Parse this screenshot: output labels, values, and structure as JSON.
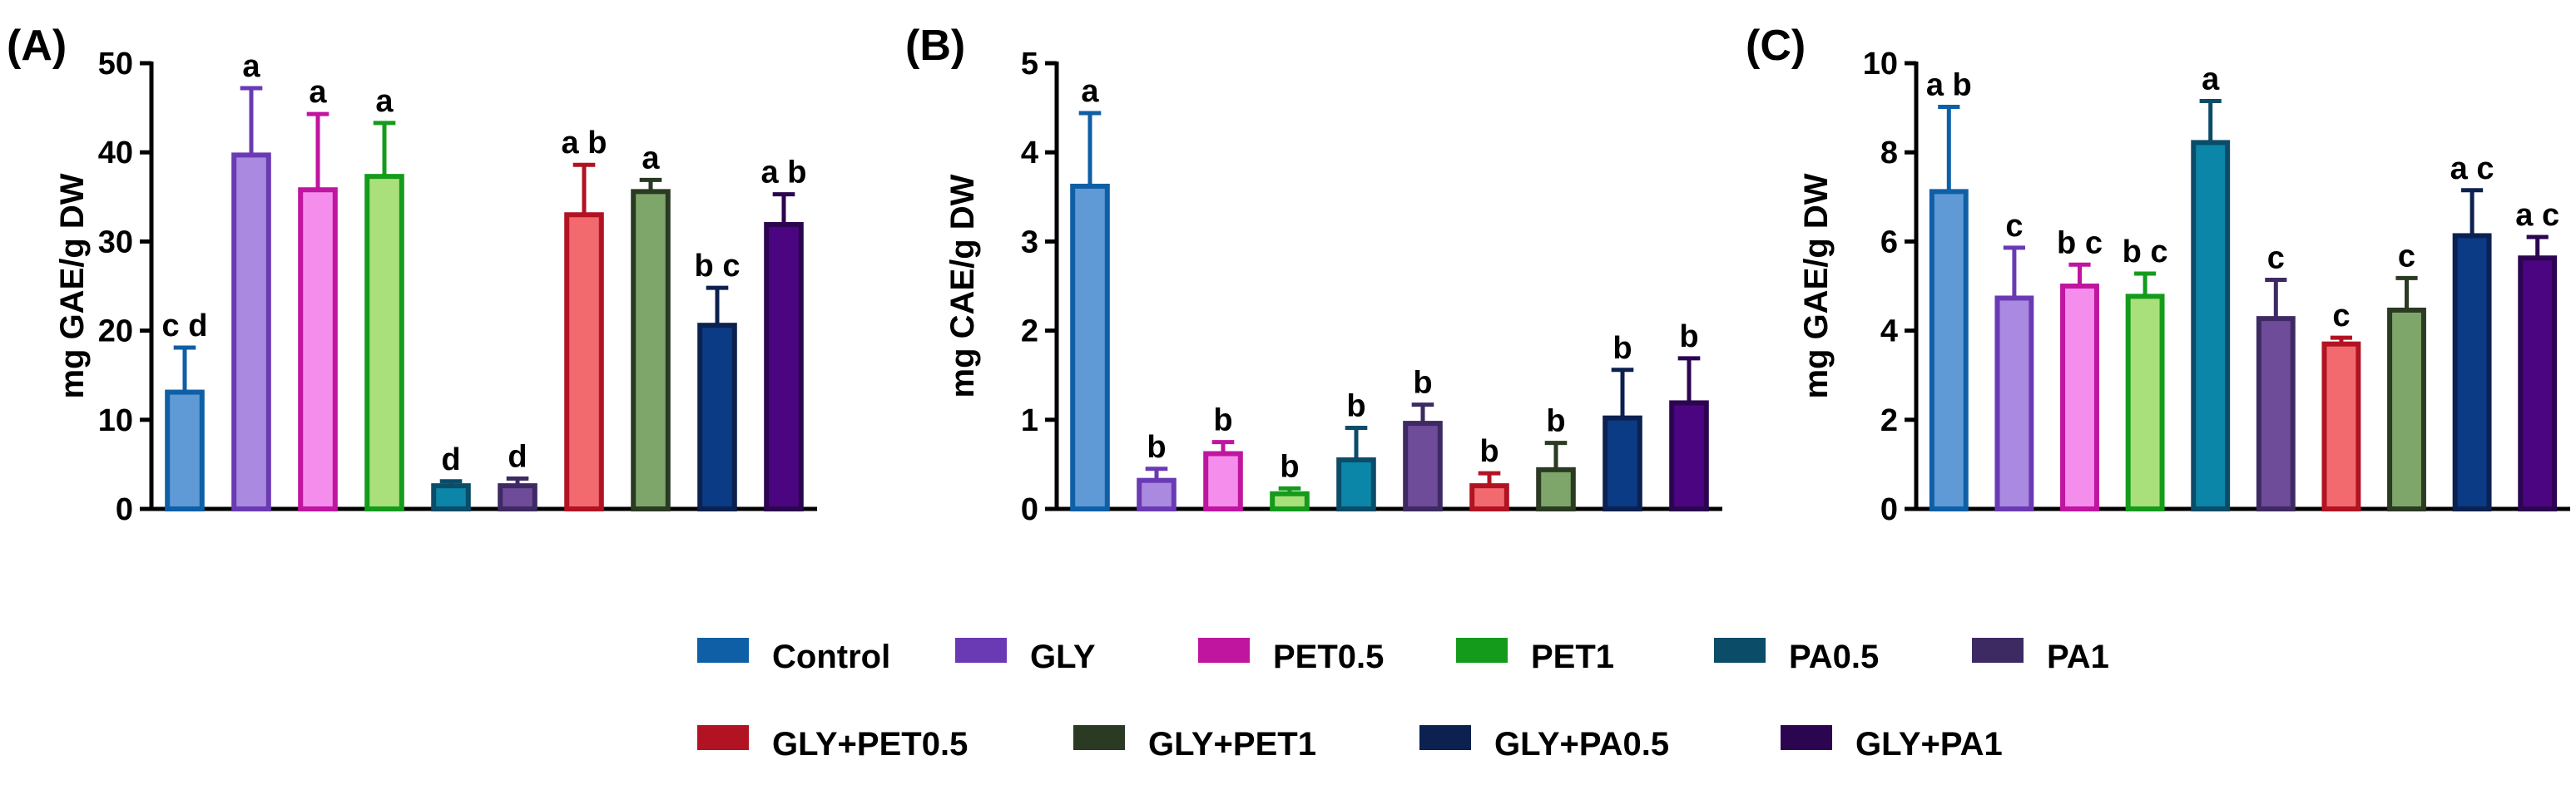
{
  "colors": {
    "Control": {
      "edge": "#0f5fa6",
      "fill": "#5f9ad6"
    },
    "GLY": {
      "edge": "#6a3ab4",
      "fill": "#a98ae0"
    },
    "PET0.5": {
      "edge": "#c0159f",
      "fill": "#f58ded"
    },
    "PET1": {
      "edge": "#159b1c",
      "fill": "#a9e07c"
    },
    "PA0.5": {
      "edge": "#0b4c68",
      "fill": "#0b86a8"
    },
    "PA1": {
      "edge": "#3e2a63",
      "fill": "#6e4c99"
    },
    "GLY+PET0.5": {
      "edge": "#b21323",
      "fill": "#f26a6e"
    },
    "GLY+PET1": {
      "edge": "#2a3a23",
      "fill": "#7ea66a"
    },
    "GLY+PA0.5": {
      "edge": "#0c2150",
      "fill": "#0a3b84"
    },
    "GLY+PA1": {
      "edge": "#2c0550",
      "fill": "#4b0581"
    }
  },
  "legend": {
    "entries": [
      {
        "name": "Control",
        "swatch": "#0f5fa6"
      },
      {
        "name": "GLY",
        "swatch": "#6a3ab4"
      },
      {
        "name": "PET0.5",
        "swatch": "#c0159f"
      },
      {
        "name": "PET1",
        "swatch": "#159b1c"
      },
      {
        "name": "PA0.5",
        "swatch": "#0b4c68"
      },
      {
        "name": "PA1",
        "swatch": "#3e2a63"
      },
      {
        "name": "GLY+PET0.5",
        "swatch": "#b21323"
      },
      {
        "name": "GLY+PET1",
        "swatch": "#2a3a23"
      },
      {
        "name": "GLY+PA0.5",
        "swatch": "#0c2150"
      },
      {
        "name": "GLY+PA1",
        "swatch": "#2c0550"
      }
    ]
  },
  "chart_data": [
    {
      "type": "bar",
      "panel": "(A)",
      "ylabel": "mg GAE/g DW",
      "ylim": [
        0,
        50
      ],
      "yticks": [
        0,
        10,
        20,
        30,
        40,
        50
      ],
      "categories": [
        "Control",
        "GLY",
        "PET0.5",
        "PET1",
        "PA0.5",
        "PA1",
        "GLY+PET0.5",
        "GLY+PET1",
        "GLY+PA0.5",
        "GLY+PA1"
      ],
      "values": [
        13.1,
        39.7,
        35.8,
        37.3,
        2.6,
        2.6,
        33.0,
        35.6,
        20.6,
        31.9
      ],
      "errors": [
        5.0,
        7.5,
        8.5,
        6.0,
        0.5,
        0.8,
        5.6,
        1.3,
        4.2,
        3.4
      ],
      "labels": [
        "c d",
        "a",
        "a",
        "a",
        "d",
        "d",
        "a b",
        "a",
        "b c",
        "a b"
      ]
    },
    {
      "type": "bar",
      "panel": "(B)",
      "ylabel": "mg CAE/g DW",
      "ylim": [
        0,
        5
      ],
      "yticks": [
        0,
        1,
        2,
        3,
        4,
        5
      ],
      "categories": [
        "Control",
        "GLY",
        "PET0.5",
        "PET1",
        "PA0.5",
        "PA1",
        "GLY+PET0.5",
        "GLY+PET1",
        "GLY+PA0.5",
        "GLY+PA1"
      ],
      "values": [
        3.62,
        0.32,
        0.62,
        0.17,
        0.55,
        0.96,
        0.26,
        0.44,
        1.02,
        1.19
      ],
      "errors": [
        0.82,
        0.13,
        0.13,
        0.06,
        0.36,
        0.21,
        0.14,
        0.3,
        0.54,
        0.5
      ],
      "labels": [
        "a",
        "b",
        "b",
        "b",
        "b",
        "b",
        "b",
        "b",
        "b",
        "b"
      ]
    },
    {
      "type": "bar",
      "panel": "(C)",
      "ylabel": "mg GAE/g DW",
      "ylim": [
        0,
        10
      ],
      "yticks": [
        0,
        2,
        4,
        6,
        8,
        10
      ],
      "categories": [
        "Control",
        "GLY",
        "PET0.5",
        "PET1",
        "PA0.5",
        "PA1",
        "GLY+PET0.5",
        "GLY+PET1",
        "GLY+PA0.5",
        "GLY+PA1"
      ],
      "values": [
        7.12,
        4.73,
        5.0,
        4.77,
        8.22,
        4.27,
        3.7,
        4.46,
        6.13,
        5.63
      ],
      "errors": [
        1.9,
        1.13,
        0.48,
        0.51,
        0.93,
        0.87,
        0.14,
        0.72,
        1.02,
        0.47
      ],
      "labels": [
        "a b",
        "c",
        "b c",
        "b c",
        "a",
        "c",
        "c",
        "c",
        "a c",
        "a c"
      ]
    }
  ]
}
